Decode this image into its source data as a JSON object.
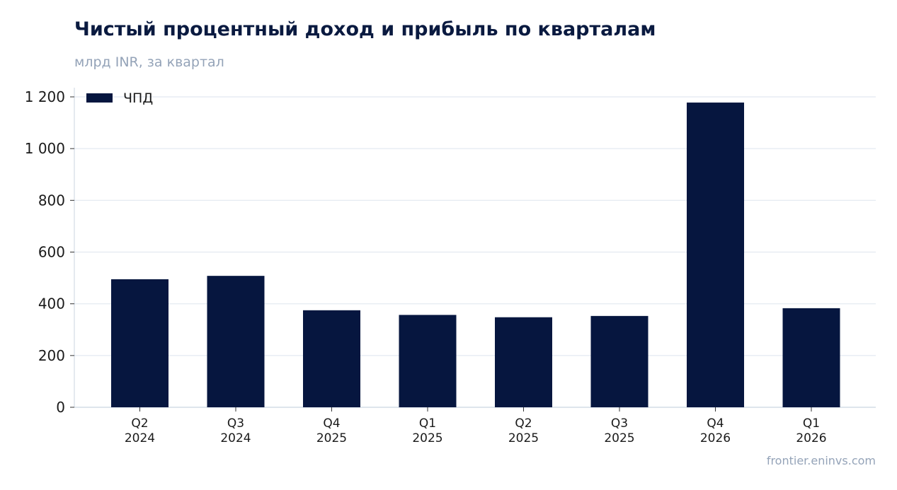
{
  "title": "Чистый процентный доход и прибыль по кварталам",
  "subtitle": "млрд INR, за квартал",
  "source": "frontier.eninvs.com",
  "colors": {
    "bar": "#06163f",
    "grid": "#e2e8f0",
    "axis": "#cbd5e1"
  },
  "chart_data": {
    "type": "bar",
    "categories": [
      [
        "Q2",
        "2024"
      ],
      [
        "Q3",
        "2024"
      ],
      [
        "Q4",
        "2025"
      ],
      [
        "Q1",
        "2025"
      ],
      [
        "Q2",
        "2025"
      ],
      [
        "Q3",
        "2025"
      ],
      [
        "Q4",
        "2026"
      ],
      [
        "Q1",
        "2026"
      ]
    ],
    "series": [
      {
        "name": "ЧПД",
        "values": [
          495,
          508,
          375,
          357,
          348,
          353,
          1178,
          383
        ]
      }
    ],
    "ylim": [
      0,
      1200
    ],
    "yticks": [
      0,
      200,
      400,
      600,
      800,
      1000,
      1200
    ],
    "ytick_labels": [
      "0",
      "200",
      "400",
      "600",
      "800",
      "1 000",
      "1 200"
    ],
    "grid": true,
    "legend": "top-left"
  }
}
